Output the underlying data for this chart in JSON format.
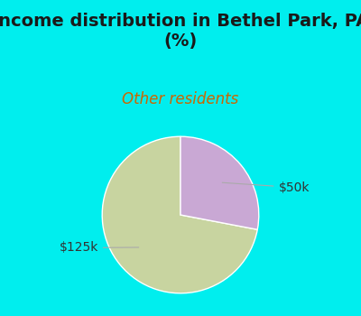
{
  "title": "Income distribution in Bethel Park, PA\n(%)",
  "subtitle": "Other residents",
  "title_color": "#1a1a1a",
  "subtitle_color": "#cc6600",
  "background_top": "#00eeee",
  "chart_bg": "#e8f5ee",
  "slices": [
    {
      "label": "$125k",
      "value": 72,
      "color": "#c8d4a0"
    },
    {
      "label": "$50k",
      "value": 28,
      "color": "#c9a8d4"
    }
  ],
  "label_fontsize": 10,
  "title_fontsize": 14,
  "subtitle_fontsize": 12,
  "startangle": 90,
  "figsize": [
    4.0,
    3.5
  ],
  "dpi": 100
}
